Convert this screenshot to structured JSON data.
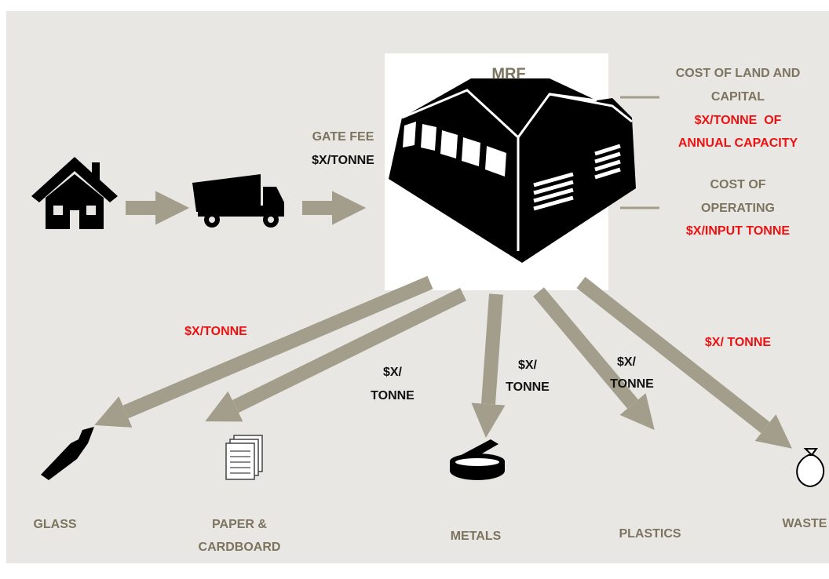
{
  "mrf": {
    "label": "MRF"
  },
  "gate_fee": {
    "label": "GATE FEE",
    "price": "$X/TONNE"
  },
  "costs": [
    {
      "label": [
        "COST OF LAND AND",
        "CAPITAL"
      ],
      "price": [
        "$X/TONNE  OF",
        "ANNUAL CAPACITY"
      ]
    },
    {
      "label": [
        "COST OF",
        "OPERATING"
      ],
      "price": [
        "$X/INPUT TONNE"
      ]
    }
  ],
  "outputs": [
    {
      "name": [
        "GLASS"
      ],
      "price": [
        "$X/TONNE"
      ]
    },
    {
      "name": [
        "PAPER &",
        "CARDBOARD"
      ],
      "price": [
        "$X/",
        "TONNE"
      ]
    },
    {
      "name": [
        "METALS"
      ],
      "price": [
        "$X/",
        "TONNE"
      ]
    },
    {
      "name": [
        "PLASTICS"
      ],
      "price": [
        "$X/",
        "TONNE"
      ]
    },
    {
      "name": [
        "WASTE"
      ],
      "price": [
        "$X/ TONNE"
      ]
    }
  ]
}
